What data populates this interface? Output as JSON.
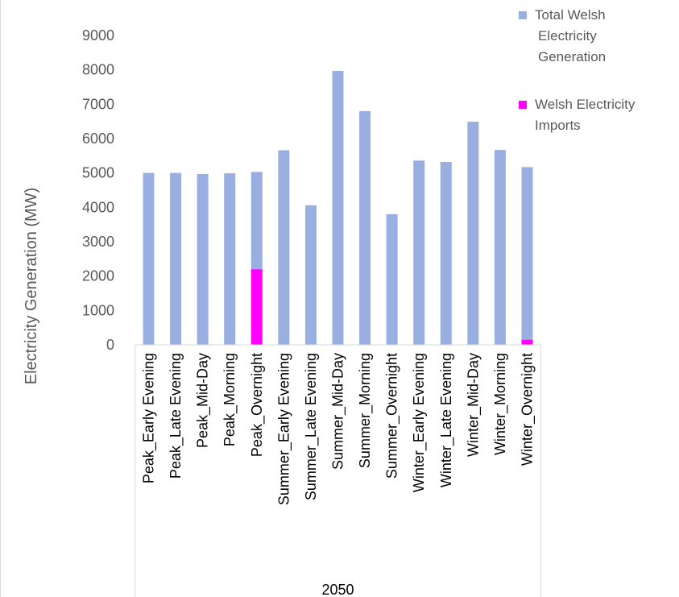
{
  "chart_data": {
    "type": "bar",
    "stacked": true,
    "ylabel": "Electricity Generation (MW)",
    "xlabel": "",
    "group_label": "2050",
    "ylim": [
      0,
      9000
    ],
    "yticks": [
      0,
      1000,
      2000,
      3000,
      4000,
      5000,
      6000,
      7000,
      8000,
      9000
    ],
    "grid": false,
    "legend_position": "top-right",
    "categories": [
      "Peak_Early Evening",
      "Peak_Late Evening",
      "Peak_Mid-Day",
      "Peak_Morning",
      "Peak_Overnight",
      "Summer_Early Evening",
      "Summer_Late Evening",
      "Summer_Mid-Day",
      "Summer_Morning",
      "Summer_Overnight",
      "Winter_Early Evening",
      "Winter_Late Evening",
      "Winter_Mid-Day",
      "Winter_Morning",
      "Winter_Overnight"
    ],
    "series": [
      {
        "name": "Welsh Electricity Imports",
        "color": "#ff00ff",
        "values": [
          0,
          0,
          0,
          0,
          2200,
          0,
          0,
          0,
          0,
          0,
          0,
          0,
          0,
          0,
          150
        ]
      },
      {
        "name": "Total Welsh Electricity Generation",
        "color": "#98afe0",
        "values": [
          5000,
          5000,
          4970,
          4990,
          2830,
          5660,
          4060,
          7970,
          6800,
          3800,
          5360,
          5320,
          6490,
          5670,
          5020
        ]
      }
    ],
    "legend": [
      {
        "lines": [
          "Total Welsh",
          "Electricity",
          "Generation"
        ],
        "color": "#98afe0"
      },
      {
        "lines": [
          "Welsh Electricity",
          "Imports"
        ],
        "color": "#ff00ff"
      }
    ]
  }
}
